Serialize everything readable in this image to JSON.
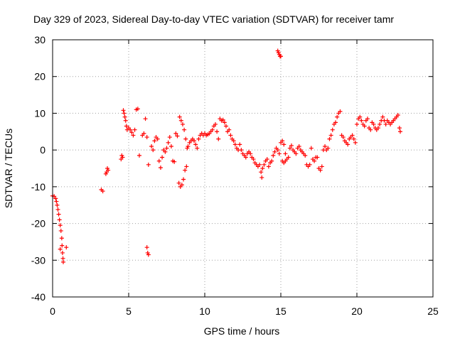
{
  "chart_data": {
    "type": "scatter",
    "title": "Day 329 of 2023, Sidereal Day-to-day VTEC variation (SDTVAR) for receiver tamr",
    "xlabel": "GPS time / hours",
    "ylabel": "SDTVAR / TECUs",
    "xlim": [
      0,
      25
    ],
    "ylim": [
      -40,
      30
    ],
    "xticks": [
      0,
      5,
      10,
      15,
      20,
      25
    ],
    "yticks": [
      -40,
      -30,
      -20,
      -10,
      0,
      10,
      20,
      30
    ],
    "xtick_labels": [
      "0",
      "5",
      "10",
      "15",
      "20",
      "25"
    ],
    "ytick_labels": [
      "-40",
      "-30",
      "-20",
      "-10",
      "0",
      "10",
      "20",
      "30"
    ],
    "grid": true,
    "marker": "+",
    "color": "#ff0000",
    "series": [
      {
        "name": "SDTVAR",
        "points": [
          [
            0.0,
            -12.5
          ],
          [
            0.1,
            -12.6
          ],
          [
            0.2,
            -13.2
          ],
          [
            0.25,
            -14
          ],
          [
            0.3,
            -15
          ],
          [
            0.35,
            -16.2
          ],
          [
            0.4,
            -17.5
          ],
          [
            0.45,
            -19
          ],
          [
            0.5,
            -20.5
          ],
          [
            0.55,
            -22
          ],
          [
            0.6,
            -24
          ],
          [
            0.62,
            -26
          ],
          [
            0.65,
            -28
          ],
          [
            0.68,
            -29.5
          ],
          [
            0.7,
            -30.5
          ],
          [
            0.9,
            -26.5
          ],
          [
            0.5,
            -27
          ],
          [
            3.2,
            -10.8
          ],
          [
            3.3,
            -11.2
          ],
          [
            3.5,
            -6.5
          ],
          [
            3.55,
            -6
          ],
          [
            3.6,
            -5
          ],
          [
            3.65,
            -5.5
          ],
          [
            4.5,
            -2.5
          ],
          [
            4.55,
            -1.5
          ],
          [
            4.6,
            -2
          ],
          [
            4.65,
            10.8
          ],
          [
            4.7,
            10
          ],
          [
            4.75,
            9
          ],
          [
            4.8,
            8
          ],
          [
            4.85,
            6.5
          ],
          [
            4.9,
            5.5
          ],
          [
            5.0,
            6
          ],
          [
            5.1,
            5.5
          ],
          [
            5.2,
            4.8
          ],
          [
            5.3,
            4
          ],
          [
            5.4,
            5.5
          ],
          [
            5.5,
            11
          ],
          [
            5.6,
            11.2
          ],
          [
            5.7,
            -1.5
          ],
          [
            5.9,
            4
          ],
          [
            6.0,
            4.5
          ],
          [
            6.1,
            8.5
          ],
          [
            6.2,
            3.5
          ],
          [
            6.3,
            -4
          ],
          [
            6.2,
            -26.5
          ],
          [
            6.25,
            -28
          ],
          [
            6.3,
            -28.5
          ],
          [
            6.5,
            1
          ],
          [
            6.6,
            0
          ],
          [
            6.7,
            2.5
          ],
          [
            6.8,
            3.5
          ],
          [
            6.9,
            3
          ],
          [
            7.0,
            -3
          ],
          [
            7.1,
            -4.8
          ],
          [
            7.2,
            -2
          ],
          [
            7.3,
            0
          ],
          [
            7.4,
            -0.5
          ],
          [
            7.5,
            0.5
          ],
          [
            7.6,
            2
          ],
          [
            7.7,
            3.5
          ],
          [
            7.8,
            1
          ],
          [
            7.9,
            -3
          ],
          [
            8.0,
            -3.2
          ],
          [
            8.1,
            4.5
          ],
          [
            8.2,
            3.8
          ],
          [
            8.3,
            -9
          ],
          [
            8.4,
            -10
          ],
          [
            8.5,
            -9.5
          ],
          [
            8.6,
            -8
          ],
          [
            8.7,
            -5.5
          ],
          [
            8.8,
            -4.5
          ],
          [
            8.35,
            9
          ],
          [
            8.45,
            8
          ],
          [
            8.55,
            7
          ],
          [
            8.65,
            5.5
          ],
          [
            8.75,
            3
          ],
          [
            8.85,
            0.5
          ],
          [
            8.9,
            1
          ],
          [
            9.0,
            2
          ],
          [
            9.1,
            2.5
          ],
          [
            9.2,
            3
          ],
          [
            9.3,
            2.5
          ],
          [
            9.4,
            1.5
          ],
          [
            9.5,
            0.5
          ],
          [
            9.6,
            3
          ],
          [
            9.7,
            4
          ],
          [
            9.8,
            4.5
          ],
          [
            9.9,
            4
          ],
          [
            10.0,
            4.5
          ],
          [
            10.1,
            4
          ],
          [
            10.2,
            4.2
          ],
          [
            10.3,
            4.5
          ],
          [
            10.4,
            5
          ],
          [
            10.5,
            5.5
          ],
          [
            10.6,
            6.5
          ],
          [
            10.7,
            7
          ],
          [
            10.8,
            5
          ],
          [
            10.9,
            3
          ],
          [
            11.0,
            8.5
          ],
          [
            11.1,
            8
          ],
          [
            11.2,
            8.2
          ],
          [
            11.3,
            7.5
          ],
          [
            11.4,
            6.5
          ],
          [
            11.5,
            5
          ],
          [
            11.6,
            5.5
          ],
          [
            11.7,
            4
          ],
          [
            11.8,
            3
          ],
          [
            11.9,
            2.5
          ],
          [
            12.0,
            1.5
          ],
          [
            12.1,
            0.5
          ],
          [
            12.2,
            0
          ],
          [
            12.3,
            1.5
          ],
          [
            12.4,
            0
          ],
          [
            12.5,
            -1
          ],
          [
            12.6,
            -1.5
          ],
          [
            12.7,
            -2
          ],
          [
            12.8,
            -1
          ],
          [
            12.9,
            -0.5
          ],
          [
            13.0,
            -1
          ],
          [
            13.1,
            -2
          ],
          [
            13.2,
            -2.5
          ],
          [
            13.3,
            -3.5
          ],
          [
            13.4,
            -4
          ],
          [
            13.5,
            -4.5
          ],
          [
            13.6,
            -4
          ],
          [
            13.7,
            -6
          ],
          [
            13.75,
            -7.5
          ],
          [
            13.8,
            -5
          ],
          [
            13.9,
            -4
          ],
          [
            14.0,
            -3
          ],
          [
            14.1,
            -2.5
          ],
          [
            14.2,
            -4.5
          ],
          [
            14.3,
            -3.5
          ],
          [
            14.4,
            -3
          ],
          [
            14.5,
            -1.5
          ],
          [
            14.6,
            -0.5
          ],
          [
            14.7,
            0.5
          ],
          [
            14.8,
            0
          ],
          [
            14.9,
            -1
          ],
          [
            15.0,
            2
          ],
          [
            15.1,
            2.5
          ],
          [
            15.2,
            1.5
          ],
          [
            15.3,
            -1
          ],
          [
            14.8,
            27
          ],
          [
            14.85,
            26.5
          ],
          [
            14.9,
            26
          ],
          [
            14.95,
            25.5
          ],
          [
            15.0,
            25.5
          ],
          [
            15.1,
            -3
          ],
          [
            15.2,
            -3.5
          ],
          [
            15.3,
            -3
          ],
          [
            15.4,
            -2.5
          ],
          [
            15.5,
            -2
          ],
          [
            15.6,
            0.5
          ],
          [
            15.7,
            1.2
          ],
          [
            15.8,
            0
          ],
          [
            15.9,
            -0.5
          ],
          [
            16.0,
            -1
          ],
          [
            16.1,
            0.5
          ],
          [
            16.2,
            1
          ],
          [
            16.3,
            0
          ],
          [
            16.4,
            -0.5
          ],
          [
            16.5,
            -1
          ],
          [
            16.6,
            -1.5
          ],
          [
            16.7,
            -4
          ],
          [
            16.8,
            -4.5
          ],
          [
            16.9,
            -4
          ],
          [
            17.0,
            0.5
          ],
          [
            17.1,
            -2.5
          ],
          [
            17.2,
            -3
          ],
          [
            17.3,
            -2
          ],
          [
            17.4,
            -2
          ],
          [
            17.5,
            -5
          ],
          [
            17.6,
            -5.5
          ],
          [
            17.7,
            -4.5
          ],
          [
            17.8,
            0
          ],
          [
            17.9,
            1
          ],
          [
            18.0,
            0
          ],
          [
            18.1,
            0.5
          ],
          [
            18.2,
            3
          ],
          [
            18.3,
            4
          ],
          [
            18.4,
            5.5
          ],
          [
            18.5,
            7
          ],
          [
            18.6,
            7.5
          ],
          [
            18.7,
            9
          ],
          [
            18.8,
            10
          ],
          [
            18.9,
            10.5
          ],
          [
            19.0,
            4
          ],
          [
            19.1,
            3.5
          ],
          [
            19.2,
            2.5
          ],
          [
            19.3,
            2
          ],
          [
            19.4,
            1.5
          ],
          [
            19.5,
            3
          ],
          [
            19.6,
            3.5
          ],
          [
            19.7,
            4
          ],
          [
            19.8,
            3
          ],
          [
            19.9,
            2
          ],
          [
            20.0,
            7
          ],
          [
            20.1,
            8.5
          ],
          [
            20.2,
            9
          ],
          [
            20.3,
            8
          ],
          [
            20.4,
            7
          ],
          [
            20.5,
            6.5
          ],
          [
            20.6,
            8
          ],
          [
            20.7,
            8.5
          ],
          [
            20.8,
            6
          ],
          [
            20.9,
            5.5
          ],
          [
            21.0,
            7.5
          ],
          [
            21.1,
            7
          ],
          [
            21.2,
            6
          ],
          [
            21.3,
            5.5
          ],
          [
            21.4,
            6
          ],
          [
            21.5,
            7
          ],
          [
            21.6,
            8
          ],
          [
            21.7,
            9
          ],
          [
            21.8,
            8
          ],
          [
            21.9,
            7
          ],
          [
            22.0,
            8
          ],
          [
            22.1,
            7.5
          ],
          [
            22.2,
            7
          ],
          [
            22.3,
            7.5
          ],
          [
            22.4,
            8
          ],
          [
            22.5,
            8.5
          ],
          [
            22.6,
            9
          ],
          [
            22.7,
            9.5
          ],
          [
            22.8,
            6
          ],
          [
            22.85,
            5
          ]
        ]
      }
    ]
  }
}
